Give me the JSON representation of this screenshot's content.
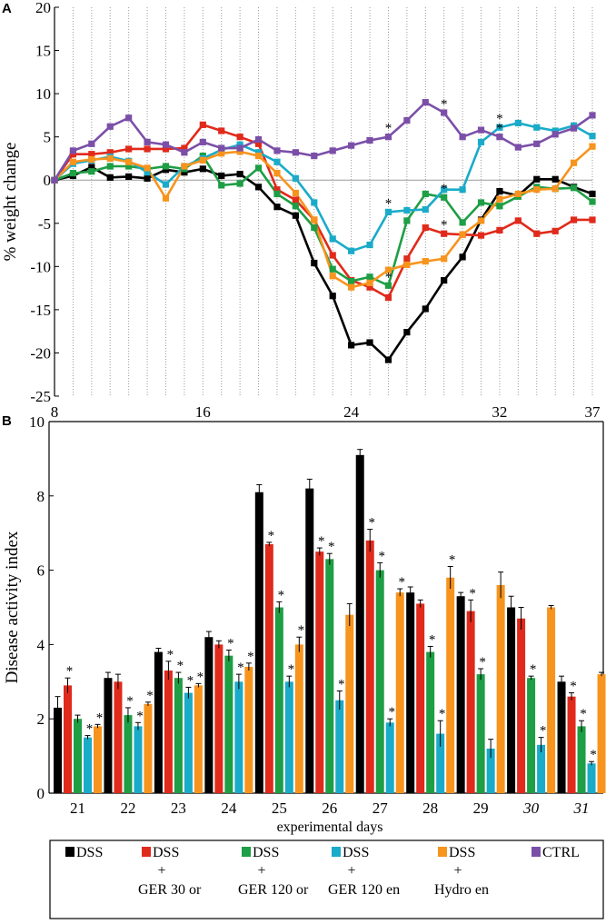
{
  "panel_a_letter": "A",
  "panel_b_letter": "B",
  "chart_data": [
    {
      "type": "line",
      "panel": "A",
      "title": "",
      "xlabel": "",
      "ylabel": "% weight change",
      "xlim": [
        8,
        37
      ],
      "ylim": [
        -25,
        20
      ],
      "x_ticks": [
        8,
        16,
        24,
        32,
        37
      ],
      "y_ticks": [
        20,
        15,
        10,
        5,
        0,
        -5,
        -10,
        -15,
        -20,
        -25
      ],
      "grid": "vertical dotted lines at each day",
      "x": [
        8,
        9,
        10,
        11,
        12,
        13,
        14,
        15,
        16,
        17,
        18,
        19,
        20,
        21,
        22,
        23,
        24,
        25,
        26,
        27,
        28,
        29,
        30,
        31,
        32,
        33,
        34,
        35,
        36,
        37
      ],
      "series": [
        {
          "name": "DSS",
          "color": "#000000",
          "values": [
            0,
            0.5,
            1.5,
            0.3,
            0.4,
            0.2,
            1.2,
            0.9,
            1.3,
            0.5,
            0.7,
            -0.8,
            -3.1,
            -4.1,
            -9.6,
            -13.4,
            -19.1,
            -18.8,
            -20.8,
            -17.6,
            -14.9,
            -11.6,
            -8.9,
            -4.6,
            -1.3,
            -1.8,
            0.1,
            0.1,
            -0.8,
            -1.6
          ]
        },
        {
          "name": "DSS + GER 30 or",
          "color": "#e02a1b",
          "values": [
            0,
            3,
            3,
            3.2,
            3.6,
            3.6,
            3.6,
            3.7,
            6.4,
            5.7,
            5,
            4.2,
            -1.1,
            -2.3,
            -4.6,
            -8.7,
            -11.6,
            -12.4,
            -13.6,
            -9.1,
            -5.5,
            -6.2,
            -6.3,
            -6.4,
            -5.8,
            -4.7,
            -6.2,
            -5.9,
            -4.6,
            -4.6
          ]
        },
        {
          "name": "DSS + GER 120 or",
          "color": "#1e9e45",
          "values": [
            0,
            0.8,
            1,
            1.6,
            1.6,
            1.3,
            1.6,
            1.3,
            2.8,
            -0.6,
            -0.4,
            1.4,
            -1.6,
            -3,
            -5.5,
            -10.3,
            -11.7,
            -11.2,
            -12.2,
            -4.7,
            -1.6,
            -2,
            -4.9,
            -2.6,
            -3,
            -1.9,
            -0.8,
            -1,
            -0.9,
            -2.5
          ]
        },
        {
          "name": "DSS + GER 120 en",
          "color": "#1aabc8",
          "values": [
            0,
            1.9,
            2.3,
            2.7,
            2.2,
            0.9,
            -0.5,
            1.6,
            2.5,
            3.5,
            4.1,
            3.2,
            2.1,
            0.2,
            -2.6,
            -6.8,
            -8.2,
            -7.5,
            -3.7,
            -3.5,
            -3.4,
            -1.1,
            -1.1,
            4.4,
            6.1,
            6.6,
            6.1,
            5.7,
            6.3,
            5.1
          ]
        },
        {
          "name": "DSS + Hydro en",
          "color": "#f7941d",
          "values": [
            0,
            2.1,
            2.4,
            2.5,
            2.1,
            1.4,
            -2.1,
            1.6,
            2.3,
            3.1,
            3.3,
            2.8,
            0.8,
            -1.5,
            -4.6,
            -11.1,
            -12.4,
            -11.9,
            -10.4,
            -9.8,
            -9.4,
            -9.1,
            -6.3,
            -4.7,
            -2.2,
            -1.6,
            -1.1,
            -1,
            2,
            3.9
          ]
        },
        {
          "name": "CTRL",
          "color": "#7b4fa8",
          "values": [
            0,
            3.4,
            4.2,
            6.2,
            7.2,
            4.4,
            4.1,
            3.2,
            4.4,
            3.7,
            3.7,
            4.7,
            3.4,
            3.2,
            2.8,
            3.4,
            4,
            4.6,
            5,
            6.9,
            9,
            7.8,
            5,
            5.8,
            5,
            3.8,
            4.2,
            5.3,
            6,
            7.5
          ]
        }
      ],
      "significance_markers": [
        {
          "x": 26,
          "series": "CTRL",
          "label": "*"
        },
        {
          "x": 29,
          "series": "CTRL",
          "label": "*"
        },
        {
          "x": 32,
          "series": "CTRL",
          "label": "*"
        },
        {
          "x": 26,
          "series": "DSS + GER 120 en",
          "label": "*"
        },
        {
          "x": 29,
          "series": "DSS + GER 120 or",
          "label": "*"
        },
        {
          "x": 29,
          "series": "DSS + GER 30 or",
          "label": "*"
        },
        {
          "x": 26,
          "series": "DSS + GER 120 or",
          "label": "*"
        },
        {
          "x": 32,
          "series": "DSS + GER 120 en",
          "label": "*"
        }
      ]
    },
    {
      "type": "bar",
      "panel": "B",
      "title": "",
      "xlabel": "experimental days",
      "ylabel": "Disease activity index",
      "ylim": [
        0,
        10
      ],
      "y_ticks": [
        0,
        2,
        4,
        6,
        8,
        10
      ],
      "categories": [
        "21",
        "22",
        "23",
        "24",
        "25",
        "26",
        "27",
        "28",
        "29",
        "30",
        "31"
      ],
      "italic_categories": [
        "30",
        "31"
      ],
      "series": [
        {
          "name": "DSS",
          "color": "#000000",
          "values": [
            2.3,
            3.1,
            3.8,
            4.2,
            8.1,
            8.2,
            9.1,
            5.4,
            5.3,
            5.0,
            3.0
          ],
          "errors": [
            0.3,
            0.15,
            0.1,
            0.15,
            0.2,
            0.25,
            0.15,
            0.15,
            0.1,
            0.3,
            0.15
          ],
          "significant": [
            false,
            false,
            false,
            false,
            false,
            false,
            false,
            false,
            false,
            false,
            false
          ]
        },
        {
          "name": "DSS + GER 30 or",
          "color": "#e02a1b",
          "values": [
            2.9,
            3.0,
            3.3,
            4.0,
            6.7,
            6.5,
            6.8,
            5.1,
            4.9,
            4.7,
            2.6
          ],
          "errors": [
            0.2,
            0.2,
            0.25,
            0.1,
            0.05,
            0.1,
            0.3,
            0.1,
            0.3,
            0.3,
            0.1
          ],
          "significant": [
            true,
            false,
            true,
            false,
            true,
            true,
            true,
            false,
            true,
            false,
            true
          ]
        },
        {
          "name": "DSS + GER 120 or",
          "color": "#1e9e45",
          "values": [
            2.0,
            2.1,
            3.1,
            3.7,
            5.0,
            6.3,
            6.0,
            3.8,
            3.2,
            3.1,
            1.8
          ],
          "errors": [
            0.1,
            0.2,
            0.15,
            0.15,
            0.15,
            0.15,
            0.2,
            0.15,
            0.15,
            0.05,
            0.15
          ],
          "significant": [
            false,
            true,
            true,
            true,
            true,
            true,
            true,
            true,
            true,
            true,
            true
          ]
        },
        {
          "name": "DSS + GER 120 en",
          "color": "#1aabc8",
          "values": [
            1.5,
            1.8,
            2.7,
            3.0,
            3.0,
            2.5,
            1.9,
            1.6,
            1.2,
            1.3,
            0.8
          ],
          "errors": [
            0.05,
            0.1,
            0.15,
            0.2,
            0.15,
            0.25,
            0.1,
            0.35,
            0.25,
            0.2,
            0.05
          ],
          "significant": [
            true,
            true,
            true,
            true,
            true,
            true,
            true,
            true,
            false,
            true,
            true
          ]
        },
        {
          "name": "DSS + Hydro en",
          "color": "#f7941d",
          "values": [
            1.8,
            2.4,
            2.9,
            3.4,
            4.0,
            4.8,
            5.4,
            5.8,
            5.6,
            5.0,
            3.2
          ],
          "errors": [
            0.05,
            0.05,
            0.05,
            0.1,
            0.2,
            0.3,
            0.1,
            0.3,
            0.35,
            0.05,
            0.05
          ],
          "significant": [
            true,
            true,
            true,
            true,
            true,
            false,
            true,
            true,
            false,
            false,
            false
          ]
        }
      ]
    }
  ],
  "legend": {
    "items": [
      {
        "name": "DSS",
        "line1": "DSS",
        "line2": "",
        "line3": "",
        "color": "#000000"
      },
      {
        "name": "DSS + GER 30 or",
        "line1": "DSS",
        "line2": "+",
        "line3": "GER 30 or",
        "color": "#e02a1b"
      },
      {
        "name": "DSS + GER 120 or",
        "line1": "DSS",
        "line2": "+",
        "line3": "GER 120 or",
        "color": "#1e9e45"
      },
      {
        "name": "DSS + GER 120 en",
        "line1": "DSS",
        "line2": "+",
        "line3": "GER 120 en",
        "color": "#1aabc8"
      },
      {
        "name": "DSS + Hydro en",
        "line1": "DSS",
        "line2": "+",
        "line3": "Hydro en",
        "color": "#f7941d"
      },
      {
        "name": "CTRL",
        "line1": "CTRL",
        "line2": "",
        "line3": "",
        "color": "#7b4fa8"
      }
    ]
  }
}
